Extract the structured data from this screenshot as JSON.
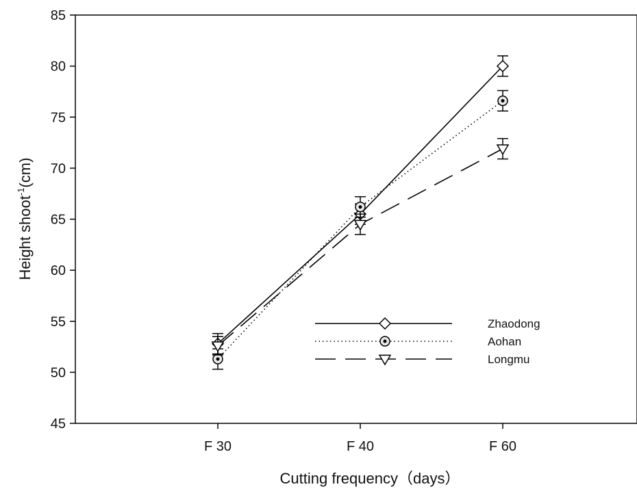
{
  "chart_data": {
    "type": "line",
    "categories": [
      "F 30",
      "F 40",
      "F 60"
    ],
    "xlabel": "Cutting frequency（days）",
    "ylabel_main": "Height shoot",
    "ylabel_sup": "-1",
    "ylabel_unit": "(cm)",
    "ylim": [
      45,
      85
    ],
    "yticks": [
      45,
      50,
      55,
      60,
      65,
      70,
      75,
      80,
      85
    ],
    "grid": false,
    "legend_position": "lower-right",
    "series": [
      {
        "name": "Zhaodong",
        "values": [
          52.8,
          65.5,
          80.0
        ],
        "errors": [
          1.0,
          1.0,
          1.0
        ],
        "marker": "diamond",
        "line_style": "solid",
        "color": "#000000"
      },
      {
        "name": "Aohan",
        "values": [
          51.3,
          66.2,
          76.6
        ],
        "errors": [
          1.0,
          1.0,
          1.0
        ],
        "marker": "circle-dot",
        "line_style": "dotted",
        "color": "#000000"
      },
      {
        "name": "Longmu",
        "values": [
          52.6,
          64.5,
          71.9
        ],
        "errors": [
          0.9,
          1.0,
          1.0
        ],
        "marker": "triangle-down",
        "line_style": "dashed",
        "color": "#000000"
      }
    ]
  }
}
